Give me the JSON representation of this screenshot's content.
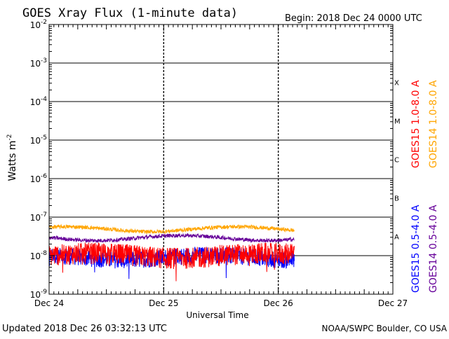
{
  "chart_data": {
    "type": "line",
    "title": "GOES Xray Flux (1-minute data)",
    "begin_label": "Begin:  2018 Dec 24 0000 UTC",
    "xlabel": "Universal Time",
    "ylabel_base": "Watts m",
    "ylabel_exp": "-2",
    "x_ticks": [
      "Dec 24",
      "Dec 25",
      "Dec 26",
      "Dec 27"
    ],
    "x_range_days": [
      0,
      3
    ],
    "yscale": "log",
    "ylim": [
      1e-09,
      0.01
    ],
    "y_tick_exponents": [
      "-2",
      "-3",
      "-4",
      "-5",
      "-6",
      "-7",
      "-8",
      "-9"
    ],
    "flare_classes": [
      {
        "label": "X",
        "from": 0.0001,
        "to": 0.001
      },
      {
        "label": "M",
        "from": 1e-05,
        "to": 0.0001
      },
      {
        "label": "C",
        "from": 1e-06,
        "to": 1e-05
      },
      {
        "label": "B",
        "from": 1e-07,
        "to": 1e-06
      },
      {
        "label": "A",
        "from": 1e-08,
        "to": 1e-07
      }
    ],
    "series": [
      {
        "name": "GOES15 1.0-8.0 A",
        "color": "#ff0000",
        "base": 1e-08,
        "noise": 0.28,
        "end_day": 2.14
      },
      {
        "name": "GOES14 1.0-8.0 A",
        "color": "#ffa500",
        "base": 4.9e-08,
        "noise": 0.05,
        "end_day": 2.14
      },
      {
        "name": "GOES15 0.5-4.0 A",
        "color": "#0000ff",
        "base": 9e-09,
        "noise": 0.22,
        "end_day": 2.14
      },
      {
        "name": "GOES14 0.5-4.0 A",
        "color": "#660099",
        "base": 2.9e-08,
        "noise": 0.05,
        "end_day": 2.14
      }
    ]
  },
  "footer": {
    "updated": "Updated 2018 Dec 26 03:32:13 UTC",
    "credit": "NOAA/SWPC Boulder, CO USA"
  }
}
